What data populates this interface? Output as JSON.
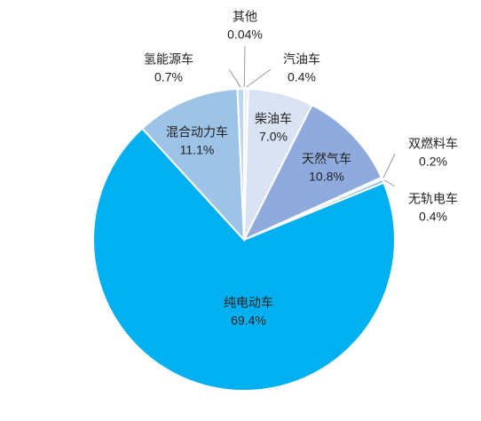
{
  "chart_data": {
    "type": "pie",
    "categories": [
      "其他",
      "汽油车",
      "柴油车",
      "天然气车",
      "双燃料车",
      "无轨电车",
      "纯电动车",
      "混合动力车",
      "氢能源车"
    ],
    "values": [
      0.04,
      0.4,
      7.0,
      10.8,
      0.2,
      0.4,
      69.4,
      11.1,
      0.7
    ],
    "value_labels": [
      "0.04%",
      "0.4%",
      "7.0%",
      "10.8%",
      "0.2%",
      "0.4%",
      "69.4%",
      "11.1%",
      "0.7%"
    ],
    "colors": [
      "#dfe8f5",
      "#e9eff8",
      "#dae3f3",
      "#8faadc",
      "#b4c7e7",
      "#9dc3e6",
      "#00b0f0",
      "#9dc3e6",
      "#bdd7ee"
    ]
  }
}
